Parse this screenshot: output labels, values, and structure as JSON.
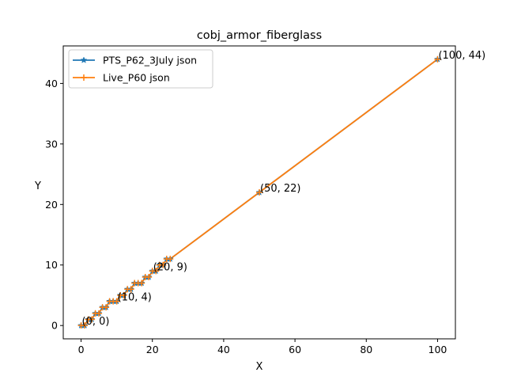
{
  "chart_data": {
    "type": "line",
    "title": "cobj_armor_fiberglass",
    "xlabel": "X",
    "ylabel": "Y",
    "xlim": [
      -5,
      105
    ],
    "ylim": [
      -2.2,
      46.2
    ],
    "xticks": [
      0,
      20,
      40,
      60,
      80,
      100
    ],
    "yticks": [
      0,
      10,
      20,
      30,
      40
    ],
    "grid": false,
    "legend_position": "top-left",
    "series": [
      {
        "name": "PTS_P62_3July json",
        "color": "#1f77b4",
        "marker": "star",
        "x": [
          0,
          1,
          2,
          3,
          4,
          5,
          6,
          7,
          8,
          9,
          10,
          11,
          12,
          13,
          14,
          15,
          16,
          17,
          18,
          19,
          20,
          21,
          22,
          23,
          24,
          25,
          50,
          100
        ],
        "y": [
          0,
          0,
          1,
          1,
          2,
          2,
          3,
          3,
          4,
          4,
          4,
          5,
          5,
          6,
          6,
          7,
          7,
          7,
          8,
          8,
          9,
          9,
          10,
          10,
          11,
          11,
          22,
          44
        ]
      },
      {
        "name": "Live_P60 json",
        "color": "#ff7f0e",
        "marker": "plus",
        "x": [
          0,
          1,
          2,
          3,
          4,
          5,
          6,
          7,
          8,
          9,
          10,
          11,
          12,
          13,
          14,
          15,
          16,
          17,
          18,
          19,
          20,
          21,
          22,
          23,
          24,
          25,
          50,
          100
        ],
        "y": [
          0,
          0,
          1,
          1,
          2,
          2,
          3,
          3,
          4,
          4,
          4,
          5,
          5,
          6,
          6,
          7,
          7,
          7,
          8,
          8,
          9,
          9,
          10,
          10,
          11,
          11,
          22,
          44
        ]
      }
    ],
    "annotations": [
      {
        "text": "(0, 0)",
        "x": 0,
        "y": 0
      },
      {
        "text": "(10, 4)",
        "x": 10,
        "y": 4
      },
      {
        "text": "(20, 9)",
        "x": 20,
        "y": 9
      },
      {
        "text": "(50, 22)",
        "x": 50,
        "y": 22
      },
      {
        "text": "(100, 44)",
        "x": 100,
        "y": 44
      }
    ]
  }
}
